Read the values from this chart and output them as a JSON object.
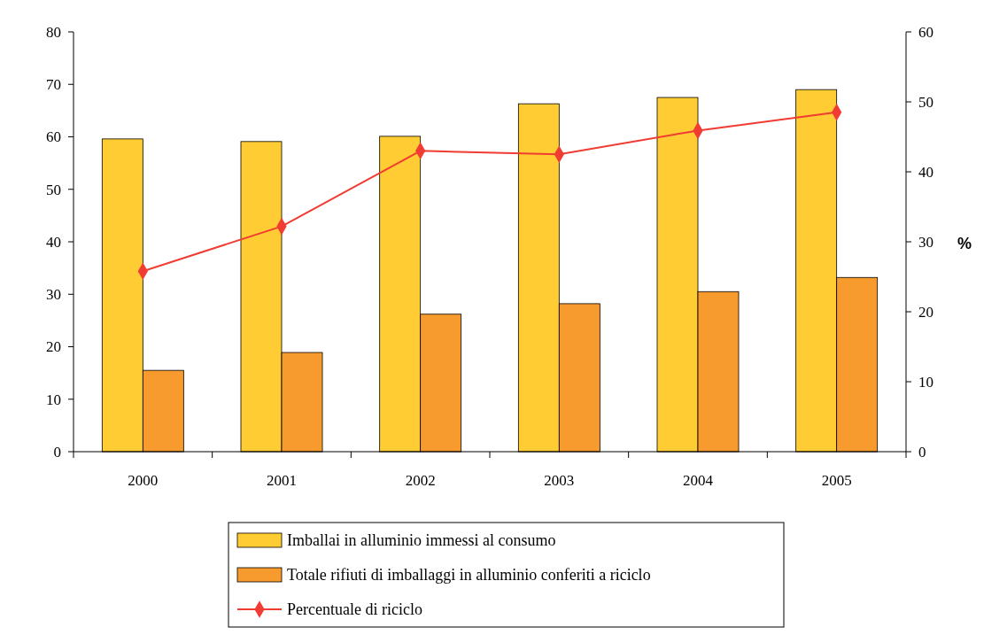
{
  "chart_data": {
    "type": "bar",
    "categories": [
      "2000",
      "2001",
      "2002",
      "2003",
      "2004",
      "2005"
    ],
    "series": [
      {
        "name": "Imballai in alluminio immessi al consumo",
        "color": "#ffcc33",
        "values": [
          59.6,
          59.1,
          60.1,
          66.3,
          67.5,
          69.0
        ]
      },
      {
        "name": "Totale rifiuti di imballaggi in alluminio conferiti a riciclo",
        "color": "#f79b2e",
        "values": [
          15.5,
          18.9,
          26.2,
          28.2,
          30.5,
          33.2
        ]
      },
      {
        "name": "Percentuale di riciclo",
        "type": "line",
        "axis": "y2",
        "color": "#f03c32",
        "marker": "diamond",
        "values": [
          25.8,
          32.2,
          43.0,
          42.5,
          45.9,
          48.5
        ]
      }
    ],
    "ylim": [
      0,
      80
    ],
    "yticks": [
      0,
      10,
      20,
      30,
      40,
      50,
      60,
      70,
      80
    ],
    "y2lim": [
      0,
      60
    ],
    "y2ticks": [
      0,
      10,
      20,
      30,
      40,
      50,
      60
    ],
    "y2label": "%",
    "legend": "bottom",
    "grid": false
  }
}
